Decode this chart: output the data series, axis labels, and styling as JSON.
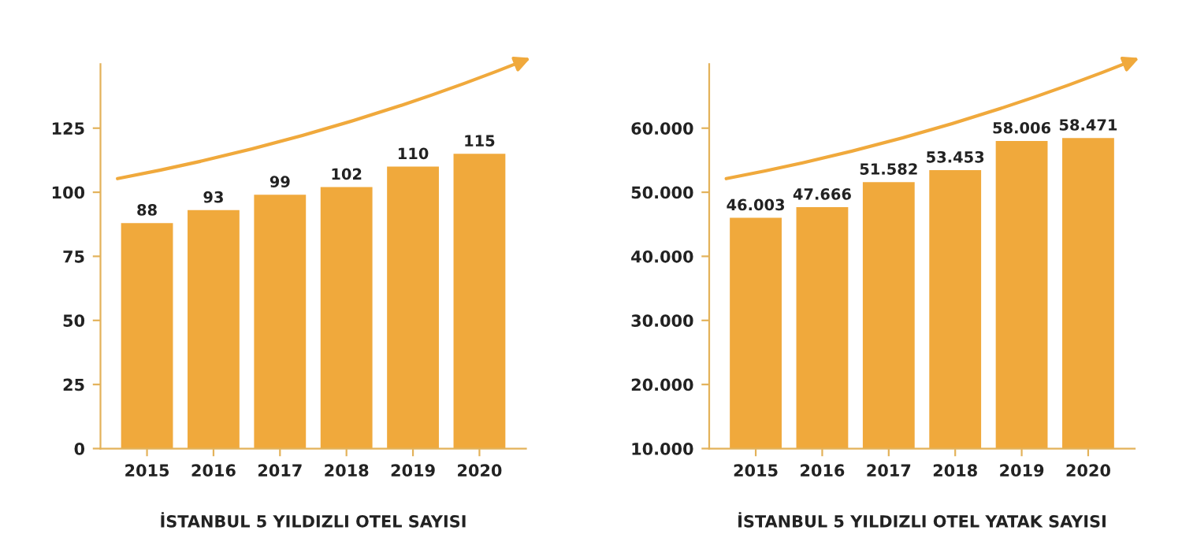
{
  "chart_data": [
    {
      "type": "bar",
      "xlabel": "İSTANBUL 5 YILDIZLI OTEL SAYISI",
      "categories": [
        "2015",
        "2016",
        "2017",
        "2018",
        "2019",
        "2020"
      ],
      "values": [
        88,
        93,
        99,
        102,
        110,
        115
      ],
      "color": "#f0a93c",
      "ylim": [
        0,
        150
      ],
      "yticks": [
        0,
        25,
        50,
        75,
        100,
        125
      ],
      "grid": false,
      "data_labels": true
    },
    {
      "type": "bar",
      "xlabel": "İSTANBUL 5 YILDIZLI OTEL YATAK SAYISI",
      "categories": [
        "2015",
        "2016",
        "2017",
        "2018",
        "2019",
        "2020"
      ],
      "values": [
        46003,
        47666,
        51582,
        53453,
        58006,
        58471
      ],
      "value_labels": [
        "46.003",
        "47.666",
        "51.582",
        "53.453",
        "58.006",
        "58.471"
      ],
      "color": "#f0a93c",
      "ylim": [
        10000,
        70000
      ],
      "yticks": [
        {
          "value": 10000,
          "label": "10.000"
        },
        {
          "value": 20000,
          "label": "20.000"
        },
        {
          "value": 30000,
          "label": "30.000"
        },
        {
          "value": 40000,
          "label": "40.000"
        },
        {
          "value": 50000,
          "label": "50.000"
        },
        {
          "value": 60000,
          "label": "60.000"
        }
      ],
      "grid": false
    }
  ]
}
